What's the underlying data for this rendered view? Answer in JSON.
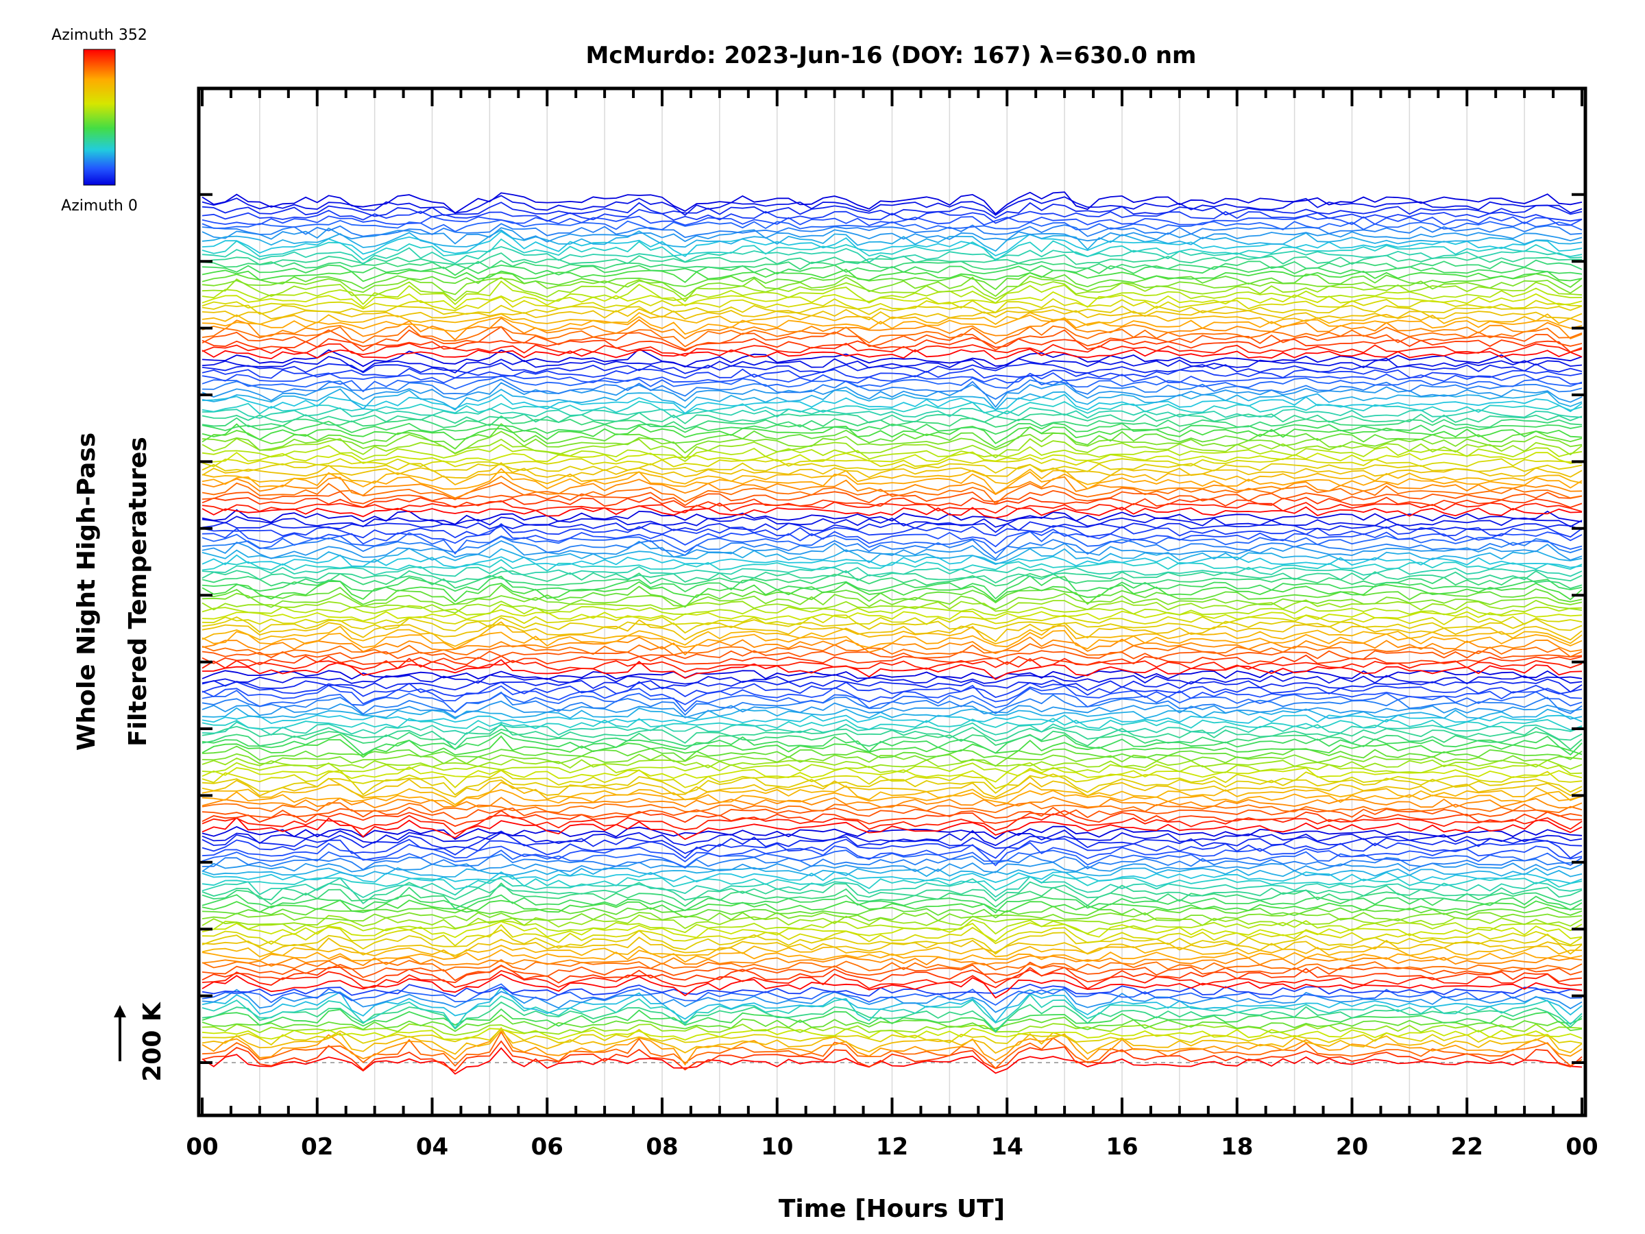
{
  "chart_data": {
    "type": "line",
    "title": "McMurdo: 2023-Jun-16 (DOY: 167) λ=630.0 nm",
    "xlabel": "Time [Hours UT]",
    "ylabel_lines": [
      "Whole Night High-Pass",
      "Filtered Temperatures"
    ],
    "x_ticks": [
      "00",
      "02",
      "04",
      "06",
      "08",
      "10",
      "12",
      "14",
      "16",
      "18",
      "20",
      "22",
      "00"
    ],
    "xlim_hours": [
      0,
      24
    ],
    "x_grid": true,
    "scale_bar": {
      "label": "200 K",
      "kelvin": 200
    },
    "colorbar": {
      "top_label": "Azimuth 352",
      "bottom_label": "Azimuth 0",
      "azimuth_range": [
        0,
        352
      ],
      "colors": [
        "#ff0000",
        "#ffaa00",
        "#d6e600",
        "#44dd44",
        "#22ccdd",
        "#2255ff",
        "#0000dd"
      ]
    },
    "series_description": "Stacked whole-night high-pass filtered temperature traces, one per azimuth direction, coloured by azimuth (blue = 0 deg to red = 352 deg), offset vertically per zenith ring",
    "series_groups": [
      {
        "ring": 1,
        "n_traces": 16
      },
      {
        "ring": 2,
        "n_traces": 32
      },
      {
        "ring": 3,
        "n_traces": 32
      },
      {
        "ring": 4,
        "n_traces": 32
      },
      {
        "ring": 5,
        "n_traces": 32
      },
      {
        "ring": 6,
        "n_traces": 32
      }
    ],
    "n_samples_per_trace": 120
  }
}
